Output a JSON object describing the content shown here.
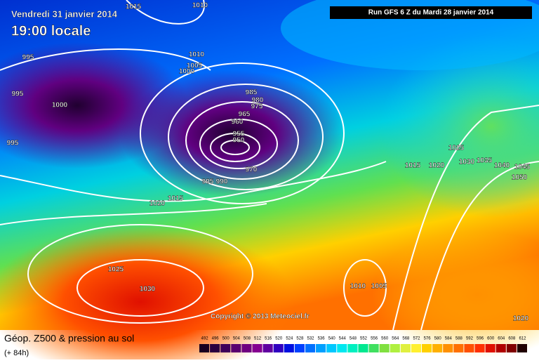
{
  "header": {
    "date": "Vendredi 31 janvier 2014",
    "time": "19:00 locale",
    "run": "Run GFS 6 Z du Mardi 28 janvier 2014"
  },
  "copyright": "Copyright © 2013 Meteociel.fr",
  "legend": {
    "title": "Géop. Z500 & pression au sol",
    "lead": "(+ 84h)",
    "scale": [
      492,
      496,
      500,
      504,
      508,
      512,
      516,
      520,
      524,
      528,
      532,
      536,
      540,
      544,
      548,
      552,
      556,
      560,
      564,
      568,
      572,
      576,
      580,
      584,
      588,
      592,
      596,
      600,
      604,
      608,
      612
    ],
    "colors": [
      "#1a0020",
      "#2a0040",
      "#40005a",
      "#5a0070",
      "#700080",
      "#850090",
      "#6000a0",
      "#3000c0",
      "#0010e0",
      "#0040ff",
      "#0070ff",
      "#00a0ff",
      "#00c8ff",
      "#00e8f0",
      "#00f0c0",
      "#00e890",
      "#40e060",
      "#80e040",
      "#b0f040",
      "#e0f040",
      "#fff030",
      "#ffd000",
      "#ffb000",
      "#ff9000",
      "#ff7000",
      "#ff5000",
      "#ff3000",
      "#e01000",
      "#b00000",
      "#800000",
      "#200000"
    ]
  },
  "isobar_labels": [
    1015,
    1010,
    995,
    1010,
    1005,
    1000,
    995,
    1000,
    985,
    980,
    975,
    965,
    960,
    955,
    950,
    995,
    970,
    995,
    990,
    1015,
    1020,
    1025,
    1015,
    1020,
    1030,
    1035,
    1040,
    1045,
    1050,
    1025,
    1030,
    1010,
    1005,
    1020
  ]
}
